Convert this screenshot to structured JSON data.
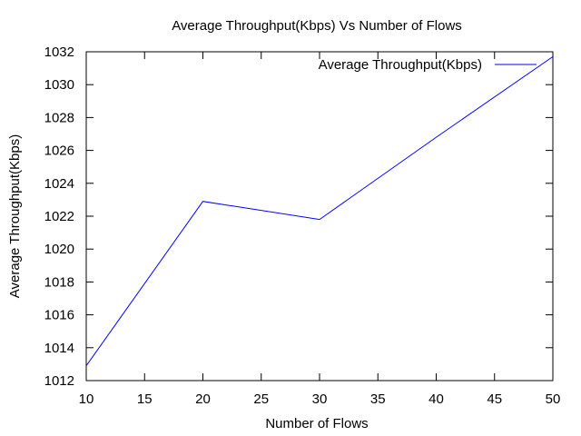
{
  "chart_data": {
    "type": "line",
    "title": "Average Throughput(Kbps) Vs Number of Flows",
    "xlabel": "Number of Flows",
    "ylabel": "Average Throughput(Kbps)",
    "xlim": [
      10,
      50
    ],
    "ylim": [
      1012,
      1032
    ],
    "x_ticks": [
      10,
      15,
      20,
      25,
      30,
      35,
      40,
      45,
      50
    ],
    "y_ticks": [
      1012,
      1014,
      1016,
      1018,
      1020,
      1022,
      1024,
      1026,
      1028,
      1030,
      1032
    ],
    "grid": false,
    "legend_position": "top-right",
    "series": [
      {
        "name": "Average Throughput(Kbps)",
        "color": "#0000ff",
        "x": [
          10,
          20,
          30,
          40,
          50
        ],
        "y": [
          1012.9,
          1022.9,
          1021.8,
          1026.8,
          1031.7
        ]
      }
    ]
  }
}
